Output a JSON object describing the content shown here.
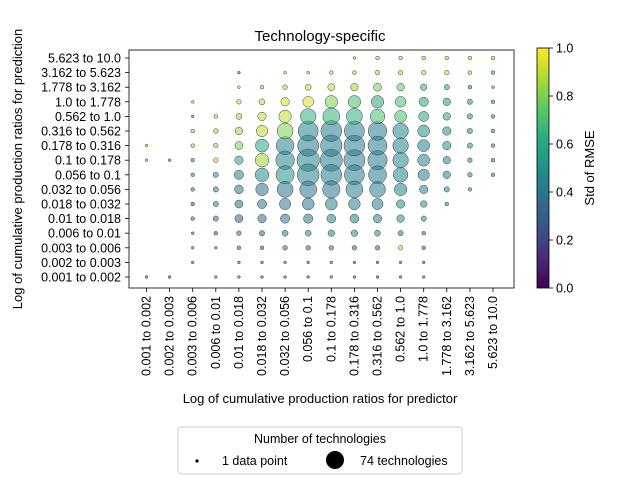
{
  "chart_data": {
    "type": "scatter",
    "title": "Technology-specific",
    "xlabel": "Log of cumulative production ratios for predictor",
    "ylabel": "Log of cumulative production ratios for prediction",
    "x_categories": [
      "0.001 to 0.002",
      "0.002 to 0.003",
      "0.003 to 0.006",
      "0.006 to 0.01",
      "0.01 to 0.018",
      "0.018 to 0.032",
      "0.032 to 0.056",
      "0.056 to 0.1",
      "0.1 to 0.178",
      "0.178 to 0.316",
      "0.316 to 0.562",
      "0.562 to 1.0",
      "1.0 to 1.778",
      "1.778 to 3.162",
      "3.162 to 5.623",
      "5.623 to 10.0"
    ],
    "y_categories": [
      "0.001 to 0.002",
      "0.002 to 0.003",
      "0.003 to 0.006",
      "0.006 to 0.01",
      "0.01 to 0.018",
      "0.018 to 0.032",
      "0.032 to 0.056",
      "0.056 to 0.1",
      "0.1 to 0.178",
      "0.178 to 0.316",
      "0.316 to 0.562",
      "0.562 to 1.0",
      "1.0 to 1.778",
      "1.778 to 3.162",
      "3.162 to 5.623",
      "5.623 to 10.0"
    ],
    "size_variable": "Number of technologies",
    "color_variable": "Std of RMSE",
    "colormap": "viridis",
    "colorbar": {
      "label": "Std of RMSE",
      "range": [
        0,
        1
      ],
      "ticks": [
        "0.0",
        "0.2",
        "0.4",
        "0.6",
        "0.8",
        "1.0"
      ]
    },
    "legend": {
      "title": "Number of technologies",
      "placement": "bottom-center",
      "entries": [
        {
          "label": "1 data point",
          "n": 1
        },
        {
          "label": "74 technologies",
          "n": 74
        }
      ]
    },
    "n_max": 74,
    "grid": false,
    "points": [
      {
        "x": 0,
        "y": 0,
        "n": 1,
        "std": 0.25
      },
      {
        "x": 1,
        "y": 0,
        "n": 1,
        "std": 0.25
      },
      {
        "x": 3,
        "y": 0,
        "n": 1,
        "std": 0.25
      },
      {
        "x": 4,
        "y": 0,
        "n": 1,
        "std": 0.25
      },
      {
        "x": 5,
        "y": 0,
        "n": 1,
        "std": 0.25
      },
      {
        "x": 6,
        "y": 0,
        "n": 1,
        "std": 0.25
      },
      {
        "x": 7,
        "y": 0,
        "n": 1,
        "std": 0.25
      },
      {
        "x": 8,
        "y": 0,
        "n": 1,
        "std": 0.25
      },
      {
        "x": 9,
        "y": 0,
        "n": 1,
        "std": 0.25
      },
      {
        "x": 10,
        "y": 0,
        "n": 1,
        "std": 0.25
      },
      {
        "x": 11,
        "y": 0,
        "n": 1,
        "std": 0.25
      },
      {
        "x": 12,
        "y": 0,
        "n": 1,
        "std": 0.25
      },
      {
        "x": 2,
        "y": 1,
        "n": 1,
        "std": 0.25
      },
      {
        "x": 4,
        "y": 1,
        "n": 1,
        "std": 0.25
      },
      {
        "x": 5,
        "y": 1,
        "n": 1,
        "std": 0.25
      },
      {
        "x": 6,
        "y": 1,
        "n": 1,
        "std": 0.25
      },
      {
        "x": 7,
        "y": 1,
        "n": 1,
        "std": 0.25
      },
      {
        "x": 8,
        "y": 1,
        "n": 1,
        "std": 0.25
      },
      {
        "x": 9,
        "y": 1,
        "n": 1,
        "std": 0.25
      },
      {
        "x": 10,
        "y": 1,
        "n": 1,
        "std": 0.25
      },
      {
        "x": 11,
        "y": 1,
        "n": 1,
        "std": 0.25
      },
      {
        "x": 12,
        "y": 1,
        "n": 1,
        "std": 0.25
      },
      {
        "x": 2,
        "y": 2,
        "n": 1,
        "std": 0.3
      },
      {
        "x": 3,
        "y": 2,
        "n": 1,
        "std": 0.3
      },
      {
        "x": 4,
        "y": 2,
        "n": 2,
        "std": 0.35
      },
      {
        "x": 5,
        "y": 2,
        "n": 2,
        "std": 0.35
      },
      {
        "x": 6,
        "y": 2,
        "n": 3,
        "std": 0.35
      },
      {
        "x": 7,
        "y": 2,
        "n": 3,
        "std": 0.35
      },
      {
        "x": 8,
        "y": 2,
        "n": 3,
        "std": 0.35
      },
      {
        "x": 9,
        "y": 2,
        "n": 3,
        "std": 0.35
      },
      {
        "x": 10,
        "y": 2,
        "n": 3,
        "std": 0.35
      },
      {
        "x": 11,
        "y": 2,
        "n": 3,
        "std": 0.9
      },
      {
        "x": 12,
        "y": 2,
        "n": 2,
        "std": 0.35
      },
      {
        "x": 2,
        "y": 3,
        "n": 1,
        "std": 0.3
      },
      {
        "x": 3,
        "y": 3,
        "n": 2,
        "std": 0.3
      },
      {
        "x": 4,
        "y": 3,
        "n": 3,
        "std": 0.35
      },
      {
        "x": 5,
        "y": 3,
        "n": 4,
        "std": 0.35
      },
      {
        "x": 6,
        "y": 3,
        "n": 5,
        "std": 0.45
      },
      {
        "x": 7,
        "y": 3,
        "n": 5,
        "std": 0.45
      },
      {
        "x": 8,
        "y": 3,
        "n": 6,
        "std": 0.45
      },
      {
        "x": 9,
        "y": 3,
        "n": 6,
        "std": 0.45
      },
      {
        "x": 10,
        "y": 3,
        "n": 5,
        "std": 0.45
      },
      {
        "x": 11,
        "y": 3,
        "n": 4,
        "std": 0.45
      },
      {
        "x": 12,
        "y": 3,
        "n": 2,
        "std": 0.35
      },
      {
        "x": 2,
        "y": 4,
        "n": 2,
        "std": 0.3
      },
      {
        "x": 3,
        "y": 4,
        "n": 4,
        "std": 0.4
      },
      {
        "x": 4,
        "y": 4,
        "n": 9,
        "std": 0.3
      },
      {
        "x": 5,
        "y": 4,
        "n": 10,
        "std": 0.35
      },
      {
        "x": 6,
        "y": 4,
        "n": 12,
        "std": 0.4
      },
      {
        "x": 7,
        "y": 4,
        "n": 12,
        "std": 0.4
      },
      {
        "x": 8,
        "y": 4,
        "n": 11,
        "std": 0.45
      },
      {
        "x": 9,
        "y": 4,
        "n": 11,
        "std": 0.45
      },
      {
        "x": 10,
        "y": 4,
        "n": 10,
        "std": 0.45
      },
      {
        "x": 11,
        "y": 4,
        "n": 8,
        "std": 0.5
      },
      {
        "x": 12,
        "y": 4,
        "n": 4,
        "std": 0.5
      },
      {
        "x": 2,
        "y": 5,
        "n": 2,
        "std": 0.35
      },
      {
        "x": 3,
        "y": 5,
        "n": 4,
        "std": 0.45
      },
      {
        "x": 4,
        "y": 5,
        "n": 9,
        "std": 0.4
      },
      {
        "x": 5,
        "y": 5,
        "n": 12,
        "std": 0.4
      },
      {
        "x": 6,
        "y": 5,
        "n": 18,
        "std": 0.4
      },
      {
        "x": 7,
        "y": 5,
        "n": 20,
        "std": 0.4
      },
      {
        "x": 8,
        "y": 5,
        "n": 20,
        "std": 0.45
      },
      {
        "x": 9,
        "y": 5,
        "n": 19,
        "std": 0.45
      },
      {
        "x": 10,
        "y": 5,
        "n": 17,
        "std": 0.45
      },
      {
        "x": 11,
        "y": 5,
        "n": 10,
        "std": 0.5
      },
      {
        "x": 12,
        "y": 5,
        "n": 6,
        "std": 0.5
      },
      {
        "x": 13,
        "y": 5,
        "n": 2,
        "std": 0.5
      },
      {
        "x": 2,
        "y": 6,
        "n": 2,
        "std": 0.4
      },
      {
        "x": 3,
        "y": 6,
        "n": 4,
        "std": 0.45
      },
      {
        "x": 4,
        "y": 6,
        "n": 11,
        "std": 0.4
      },
      {
        "x": 5,
        "y": 6,
        "n": 22,
        "std": 0.38
      },
      {
        "x": 6,
        "y": 6,
        "n": 36,
        "std": 0.38
      },
      {
        "x": 7,
        "y": 6,
        "n": 40,
        "std": 0.4
      },
      {
        "x": 8,
        "y": 6,
        "n": 42,
        "std": 0.4
      },
      {
        "x": 9,
        "y": 6,
        "n": 40,
        "std": 0.42
      },
      {
        "x": 10,
        "y": 6,
        "n": 35,
        "std": 0.42
      },
      {
        "x": 11,
        "y": 6,
        "n": 22,
        "std": 0.45
      },
      {
        "x": 12,
        "y": 6,
        "n": 10,
        "std": 0.45
      },
      {
        "x": 13,
        "y": 6,
        "n": 4,
        "std": 0.45
      },
      {
        "x": 14,
        "y": 6,
        "n": 2,
        "std": 0.5
      },
      {
        "x": 2,
        "y": 7,
        "n": 2,
        "std": 0.5
      },
      {
        "x": 3,
        "y": 7,
        "n": 4,
        "std": 0.5
      },
      {
        "x": 4,
        "y": 7,
        "n": 12,
        "std": 0.45
      },
      {
        "x": 5,
        "y": 7,
        "n": 26,
        "std": 0.5
      },
      {
        "x": 6,
        "y": 7,
        "n": 46,
        "std": 0.5
      },
      {
        "x": 7,
        "y": 7,
        "n": 66,
        "std": 0.45
      },
      {
        "x": 8,
        "y": 7,
        "n": 60,
        "std": 0.42
      },
      {
        "x": 9,
        "y": 7,
        "n": 56,
        "std": 0.42
      },
      {
        "x": 10,
        "y": 7,
        "n": 45,
        "std": 0.42
      },
      {
        "x": 11,
        "y": 7,
        "n": 30,
        "std": 0.45
      },
      {
        "x": 12,
        "y": 7,
        "n": 18,
        "std": 0.45
      },
      {
        "x": 13,
        "y": 7,
        "n": 8,
        "std": 0.45
      },
      {
        "x": 14,
        "y": 7,
        "n": 3,
        "std": 0.45
      },
      {
        "x": 15,
        "y": 7,
        "n": 2,
        "std": 0.45
      },
      {
        "x": 0,
        "y": 8,
        "n": 1,
        "std": 0.8
      },
      {
        "x": 1,
        "y": 8,
        "n": 1,
        "std": 0.3
      },
      {
        "x": 2,
        "y": 8,
        "n": 2,
        "std": 0.5
      },
      {
        "x": 3,
        "y": 8,
        "n": 3,
        "std": 0.9
      },
      {
        "x": 4,
        "y": 8,
        "n": 10,
        "std": 0.6
      },
      {
        "x": 5,
        "y": 8,
        "n": 26,
        "std": 0.85
      },
      {
        "x": 6,
        "y": 8,
        "n": 48,
        "std": 0.45
      },
      {
        "x": 7,
        "y": 8,
        "n": 70,
        "std": 0.45
      },
      {
        "x": 8,
        "y": 8,
        "n": 68,
        "std": 0.42
      },
      {
        "x": 9,
        "y": 8,
        "n": 62,
        "std": 0.42
      },
      {
        "x": 10,
        "y": 8,
        "n": 52,
        "std": 0.42
      },
      {
        "x": 11,
        "y": 8,
        "n": 34,
        "std": 0.45
      },
      {
        "x": 12,
        "y": 8,
        "n": 20,
        "std": 0.45
      },
      {
        "x": 13,
        "y": 8,
        "n": 8,
        "std": 0.45
      },
      {
        "x": 14,
        "y": 8,
        "n": 3,
        "std": 0.45
      },
      {
        "x": 15,
        "y": 8,
        "n": 2,
        "std": 0.4
      },
      {
        "x": 0,
        "y": 9,
        "n": 1,
        "std": 0.9
      },
      {
        "x": 2,
        "y": 9,
        "n": 2,
        "std": 0.85
      },
      {
        "x": 3,
        "y": 9,
        "n": 3,
        "std": 0.85
      },
      {
        "x": 4,
        "y": 9,
        "n": 9,
        "std": 0.8
      },
      {
        "x": 5,
        "y": 9,
        "n": 24,
        "std": 0.6
      },
      {
        "x": 6,
        "y": 9,
        "n": 44,
        "std": 0.45
      },
      {
        "x": 7,
        "y": 9,
        "n": 62,
        "std": 0.42
      },
      {
        "x": 8,
        "y": 9,
        "n": 64,
        "std": 0.42
      },
      {
        "x": 9,
        "y": 9,
        "n": 60,
        "std": 0.42
      },
      {
        "x": 10,
        "y": 9,
        "n": 50,
        "std": 0.42
      },
      {
        "x": 11,
        "y": 9,
        "n": 34,
        "std": 0.45
      },
      {
        "x": 12,
        "y": 9,
        "n": 20,
        "std": 0.45
      },
      {
        "x": 13,
        "y": 9,
        "n": 10,
        "std": 0.5
      },
      {
        "x": 14,
        "y": 9,
        "n": 4,
        "std": 0.5
      },
      {
        "x": 15,
        "y": 9,
        "n": 2,
        "std": 0.5
      },
      {
        "x": 2,
        "y": 10,
        "n": 2,
        "std": 0.85
      },
      {
        "x": 3,
        "y": 10,
        "n": 3,
        "std": 0.85
      },
      {
        "x": 4,
        "y": 10,
        "n": 8,
        "std": 0.85
      },
      {
        "x": 5,
        "y": 10,
        "n": 18,
        "std": 0.9
      },
      {
        "x": 6,
        "y": 10,
        "n": 36,
        "std": 0.8
      },
      {
        "x": 7,
        "y": 10,
        "n": 56,
        "std": 0.45
      },
      {
        "x": 8,
        "y": 10,
        "n": 60,
        "std": 0.42
      },
      {
        "x": 9,
        "y": 10,
        "n": 56,
        "std": 0.42
      },
      {
        "x": 10,
        "y": 10,
        "n": 48,
        "std": 0.42
      },
      {
        "x": 11,
        "y": 10,
        "n": 34,
        "std": 0.45
      },
      {
        "x": 12,
        "y": 10,
        "n": 20,
        "std": 0.5
      },
      {
        "x": 13,
        "y": 10,
        "n": 10,
        "std": 0.5
      },
      {
        "x": 14,
        "y": 10,
        "n": 4,
        "std": 0.5
      },
      {
        "x": 15,
        "y": 10,
        "n": 2,
        "std": 0.5
      },
      {
        "x": 2,
        "y": 11,
        "n": 1,
        "std": 0.4
      },
      {
        "x": 3,
        "y": 11,
        "n": 2,
        "std": 0.9
      },
      {
        "x": 4,
        "y": 11,
        "n": 5,
        "std": 0.85
      },
      {
        "x": 5,
        "y": 11,
        "n": 10,
        "std": 0.9
      },
      {
        "x": 6,
        "y": 11,
        "n": 22,
        "std": 0.9
      },
      {
        "x": 7,
        "y": 11,
        "n": 34,
        "std": 0.65
      },
      {
        "x": 8,
        "y": 11,
        "n": 40,
        "std": 0.65
      },
      {
        "x": 9,
        "y": 11,
        "n": 36,
        "std": 0.65
      },
      {
        "x": 10,
        "y": 11,
        "n": 30,
        "std": 0.7
      },
      {
        "x": 11,
        "y": 11,
        "n": 20,
        "std": 0.7
      },
      {
        "x": 12,
        "y": 11,
        "n": 14,
        "std": 0.6
      },
      {
        "x": 13,
        "y": 11,
        "n": 8,
        "std": 0.6
      },
      {
        "x": 14,
        "y": 11,
        "n": 4,
        "std": 0.5
      },
      {
        "x": 15,
        "y": 11,
        "n": 2,
        "std": 0.5
      },
      {
        "x": 2,
        "y": 12,
        "n": 1,
        "std": 0.9
      },
      {
        "x": 4,
        "y": 12,
        "n": 3,
        "std": 0.9
      },
      {
        "x": 5,
        "y": 12,
        "n": 5,
        "std": 0.9
      },
      {
        "x": 6,
        "y": 12,
        "n": 10,
        "std": 0.95
      },
      {
        "x": 7,
        "y": 12,
        "n": 16,
        "std": 0.95
      },
      {
        "x": 8,
        "y": 12,
        "n": 22,
        "std": 0.8
      },
      {
        "x": 9,
        "y": 12,
        "n": 22,
        "std": 0.7
      },
      {
        "x": 10,
        "y": 12,
        "n": 22,
        "std": 0.6
      },
      {
        "x": 11,
        "y": 12,
        "n": 16,
        "std": 0.7
      },
      {
        "x": 12,
        "y": 12,
        "n": 12,
        "std": 0.6
      },
      {
        "x": 13,
        "y": 12,
        "n": 8,
        "std": 0.55
      },
      {
        "x": 14,
        "y": 12,
        "n": 4,
        "std": 0.5
      },
      {
        "x": 15,
        "y": 12,
        "n": 2,
        "std": 0.5
      },
      {
        "x": 4,
        "y": 13,
        "n": 1,
        "std": 0.9
      },
      {
        "x": 5,
        "y": 13,
        "n": 2,
        "std": 0.9
      },
      {
        "x": 6,
        "y": 13,
        "n": 3,
        "std": 0.9
      },
      {
        "x": 7,
        "y": 13,
        "n": 5,
        "std": 0.9
      },
      {
        "x": 8,
        "y": 13,
        "n": 7,
        "std": 0.9
      },
      {
        "x": 9,
        "y": 13,
        "n": 8,
        "std": 0.85
      },
      {
        "x": 10,
        "y": 13,
        "n": 9,
        "std": 0.8
      },
      {
        "x": 11,
        "y": 13,
        "n": 8,
        "std": 0.75
      },
      {
        "x": 12,
        "y": 13,
        "n": 6,
        "std": 0.65
      },
      {
        "x": 13,
        "y": 13,
        "n": 4,
        "std": 0.6
      },
      {
        "x": 14,
        "y": 13,
        "n": 2,
        "std": 0.5
      },
      {
        "x": 15,
        "y": 13,
        "n": 1,
        "std": 0.5
      },
      {
        "x": 4,
        "y": 14,
        "n": 1,
        "std": 0.3
      },
      {
        "x": 6,
        "y": 14,
        "n": 1,
        "std": 0.9
      },
      {
        "x": 7,
        "y": 14,
        "n": 1,
        "std": 0.9
      },
      {
        "x": 8,
        "y": 14,
        "n": 2,
        "std": 0.9
      },
      {
        "x": 9,
        "y": 14,
        "n": 2,
        "std": 0.9
      },
      {
        "x": 10,
        "y": 14,
        "n": 3,
        "std": 0.9
      },
      {
        "x": 11,
        "y": 14,
        "n": 3,
        "std": 0.9
      },
      {
        "x": 12,
        "y": 14,
        "n": 3,
        "std": 0.9
      },
      {
        "x": 13,
        "y": 14,
        "n": 3,
        "std": 0.9
      },
      {
        "x": 14,
        "y": 14,
        "n": 2,
        "std": 0.9
      },
      {
        "x": 15,
        "y": 14,
        "n": 2,
        "std": 0.6
      },
      {
        "x": 9,
        "y": 15,
        "n": 1,
        "std": 0.9
      },
      {
        "x": 10,
        "y": 15,
        "n": 2,
        "std": 0.9
      },
      {
        "x": 11,
        "y": 15,
        "n": 2,
        "std": 0.9
      },
      {
        "x": 12,
        "y": 15,
        "n": 2,
        "std": 0.9
      },
      {
        "x": 13,
        "y": 15,
        "n": 2,
        "std": 0.9
      },
      {
        "x": 14,
        "y": 15,
        "n": 2,
        "std": 0.9
      },
      {
        "x": 15,
        "y": 15,
        "n": 2,
        "std": 0.9
      }
    ]
  }
}
